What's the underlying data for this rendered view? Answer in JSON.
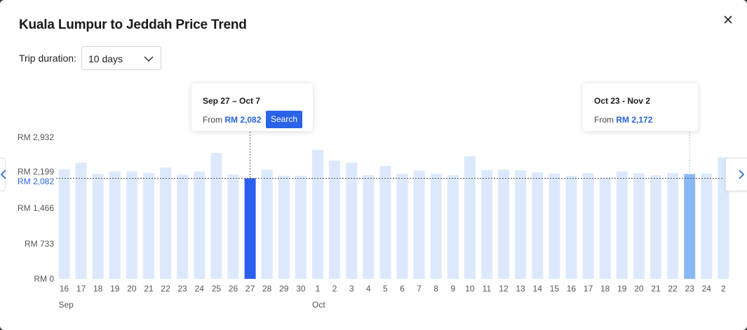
{
  "title": "Kuala Lumpur to Jeddah Price Trend",
  "duration": {
    "label": "Trip duration:",
    "value": "10 days"
  },
  "icons": {
    "close": "close-icon",
    "dropdown": "chevron-down-icon",
    "next": "chevron-right-icon",
    "prev": "chevron-left-icon"
  },
  "colors": {
    "bar": "#dce9fd",
    "selected": "#2a5ff0",
    "highlight": "#8ab7f7",
    "accent": "#2764d9",
    "button": "#2b63e8"
  },
  "tooltips": [
    {
      "dates": "Sep 27 – Oct 7",
      "from": "From",
      "price": "RM 2,082",
      "button": "Search"
    },
    {
      "dates": "Oct 23 - Nov 2",
      "from": "From",
      "price": "RM 2,172"
    }
  ],
  "chart_data": {
    "type": "bar",
    "title": "Kuala Lumpur to Jeddah Price Trend",
    "y_ticks": [
      "RM 2,932",
      "RM 2,199",
      "RM 1,466",
      "RM 733",
      "RM 0"
    ],
    "reference_label": "RM 2,082",
    "ylim": [
      0,
      2932
    ],
    "months": [
      {
        "label": "Sep",
        "at_index": 0
      },
      {
        "label": "Oct",
        "at_index": 15
      }
    ],
    "categories": [
      "16",
      "17",
      "18",
      "19",
      "20",
      "21",
      "22",
      "23",
      "24",
      "25",
      "26",
      "27",
      "28",
      "29",
      "30",
      "1",
      "2",
      "3",
      "4",
      "5",
      "6",
      "7",
      "8",
      "9",
      "10",
      "11",
      "12",
      "13",
      "14",
      "15",
      "16",
      "17",
      "18",
      "19",
      "20",
      "21",
      "22",
      "23",
      "24",
      "2"
    ],
    "values": [
      2270,
      2408,
      2174,
      2224,
      2224,
      2195,
      2306,
      2157,
      2224,
      2612,
      2162,
      2082,
      2261,
      2137,
      2137,
      2672,
      2448,
      2406,
      2149,
      2340,
      2177,
      2241,
      2173,
      2149,
      2540,
      2254,
      2263,
      2249,
      2209,
      2182,
      2132,
      2192,
      2095,
      2227,
      2190,
      2144,
      2195,
      2172,
      2182,
      2520
    ],
    "selected_index": 11,
    "highlight_index": 37,
    "grid": false,
    "legend": "none"
  }
}
